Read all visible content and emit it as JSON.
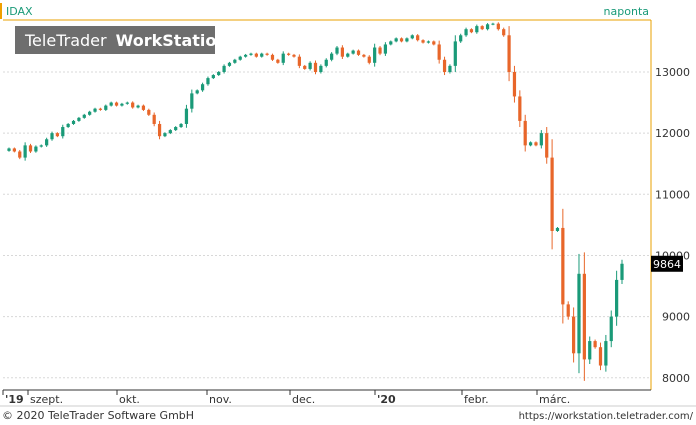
{
  "header": {
    "symbol": "IDAX",
    "interval": "naponta"
  },
  "watermark": {
    "brand": "TeleTrader",
    "product": "WorkStation"
  },
  "footer": {
    "copyright": "© 2020 TeleTrader Software GmbH",
    "url": "https://workstation.teletrader.com/"
  },
  "last_price_label": "9864",
  "colors": {
    "up": "#1a9a78",
    "down": "#e8662a",
    "grid": "#d8d8d8",
    "axis_line": "#e8a000",
    "accent": "#f0a000",
    "watermark_bg": "#6e6e6e",
    "label_bg": "#000000"
  },
  "chart_data": {
    "type": "candlestick",
    "x_tick_labels": [
      "'19",
      "szept.",
      "okt.",
      "nov.",
      "dec.",
      "'20",
      "febr.",
      "márc."
    ],
    "y_ticks": [
      8000,
      9000,
      10000,
      11000,
      12000,
      13000
    ],
    "ylim": [
      7800,
      13850
    ],
    "grid": true,
    "closes": [
      11750,
      11700,
      11600,
      11800,
      11700,
      11780,
      11800,
      11900,
      12000,
      11950,
      12100,
      12150,
      12200,
      12250,
      12300,
      12350,
      12400,
      12380,
      12450,
      12500,
      12450,
      12480,
      12500,
      12420,
      12450,
      12380,
      12300,
      12150,
      11950,
      12000,
      12050,
      12100,
      12150,
      12400,
      12650,
      12700,
      12800,
      12900,
      12950,
      13000,
      13100,
      13150,
      13200,
      13250,
      13280,
      13300,
      13250,
      13300,
      13280,
      13200,
      13150,
      13300,
      13280,
      13250,
      13100,
      13050,
      13150,
      13000,
      13100,
      13200,
      13300,
      13400,
      13250,
      13300,
      13350,
      13280,
      13250,
      13150,
      13400,
      13300,
      13450,
      13500,
      13550,
      13500,
      13550,
      13600,
      13520,
      13480,
      13500,
      13450,
      13200,
      13000,
      13100,
      13500,
      13600,
      13700,
      13650,
      13750,
      13700,
      13780,
      13790,
      13700,
      13600,
      13000,
      12600,
      12200,
      11800,
      11850,
      11800,
      12000,
      11600,
      10400,
      10450,
      9200,
      9000,
      8400,
      9700,
      8300,
      8600,
      8500,
      8200,
      8600,
      9000,
      9600,
      9864
    ]
  }
}
